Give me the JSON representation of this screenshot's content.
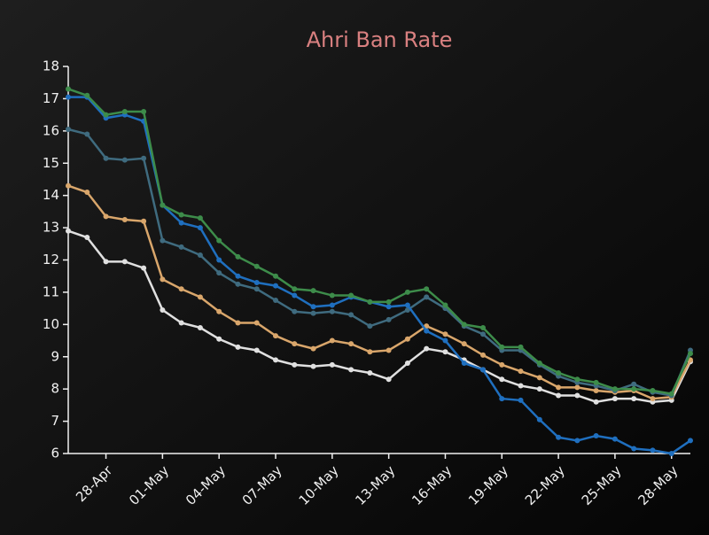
{
  "chart_data": {
    "type": "line",
    "title": "Ahri Ban Rate",
    "categories": [
      null,
      null,
      "28-Apr",
      null,
      null,
      "01-May",
      null,
      null,
      "04-May",
      null,
      null,
      "07-May",
      null,
      null,
      "10-May",
      null,
      null,
      "13-May",
      null,
      null,
      "16-May",
      null,
      null,
      "19-May",
      null,
      null,
      "22-May",
      null,
      null,
      "25-May",
      null,
      null,
      "28-May",
      null
    ],
    "ylim": [
      6,
      18
    ],
    "yticks": [
      6,
      7,
      8,
      9,
      10,
      11,
      12,
      13,
      14,
      15,
      16,
      17,
      18
    ],
    "series": [
      {
        "color": "#3d8c4a",
        "values": [
          17.3,
          17.1,
          16.5,
          16.6,
          16.6,
          13.7,
          13.4,
          13.3,
          12.6,
          12.1,
          11.8,
          11.5,
          11.1,
          11.05,
          10.9,
          10.9,
          10.7,
          10.7,
          11.0,
          11.1,
          10.6,
          10.0,
          9.9,
          9.3,
          9.3,
          8.8,
          8.5,
          8.3,
          8.2,
          8.0,
          8.0,
          7.95,
          7.85,
          9.1
        ]
      },
      {
        "color": "#1f6fbf",
        "values": [
          17.05,
          17.05,
          16.4,
          16.5,
          16.3,
          13.7,
          13.15,
          13.0,
          12.0,
          11.5,
          11.3,
          11.2,
          10.9,
          10.55,
          10.6,
          10.85,
          10.7,
          10.55,
          10.6,
          9.8,
          9.5,
          8.8,
          8.6,
          7.7,
          7.65,
          7.05,
          6.5,
          6.4,
          6.55,
          6.45,
          6.15,
          6.1,
          6.0,
          6.4
        ]
      },
      {
        "color": "#3f6b7f",
        "values": [
          16.05,
          15.9,
          15.15,
          15.1,
          15.15,
          12.6,
          12.4,
          12.15,
          11.6,
          11.25,
          11.1,
          10.75,
          10.4,
          10.35,
          10.4,
          10.3,
          9.95,
          10.15,
          10.45,
          10.85,
          10.5,
          9.95,
          9.7,
          9.2,
          9.2,
          8.75,
          8.4,
          8.2,
          8.1,
          7.95,
          8.15,
          7.9,
          7.8,
          9.2
        ]
      },
      {
        "color": "#d9a66b",
        "values": [
          14.3,
          14.1,
          13.35,
          13.25,
          13.2,
          11.4,
          11.1,
          10.85,
          10.4,
          10.05,
          10.05,
          9.65,
          9.4,
          9.25,
          9.5,
          9.4,
          9.15,
          9.2,
          9.55,
          9.95,
          9.7,
          9.4,
          9.05,
          8.75,
          8.55,
          8.35,
          8.05,
          8.05,
          7.95,
          7.9,
          7.95,
          7.7,
          7.75,
          8.9
        ]
      },
      {
        "color": "#e0e0e0",
        "values": [
          12.9,
          12.7,
          11.95,
          11.95,
          11.75,
          10.45,
          10.05,
          9.9,
          9.55,
          9.3,
          9.2,
          8.9,
          8.75,
          8.7,
          8.75,
          8.6,
          8.5,
          8.3,
          8.8,
          9.25,
          9.15,
          8.9,
          8.6,
          8.3,
          8.1,
          8.0,
          7.8,
          7.8,
          7.6,
          7.7,
          7.7,
          7.6,
          7.65,
          8.85
        ]
      }
    ]
  }
}
